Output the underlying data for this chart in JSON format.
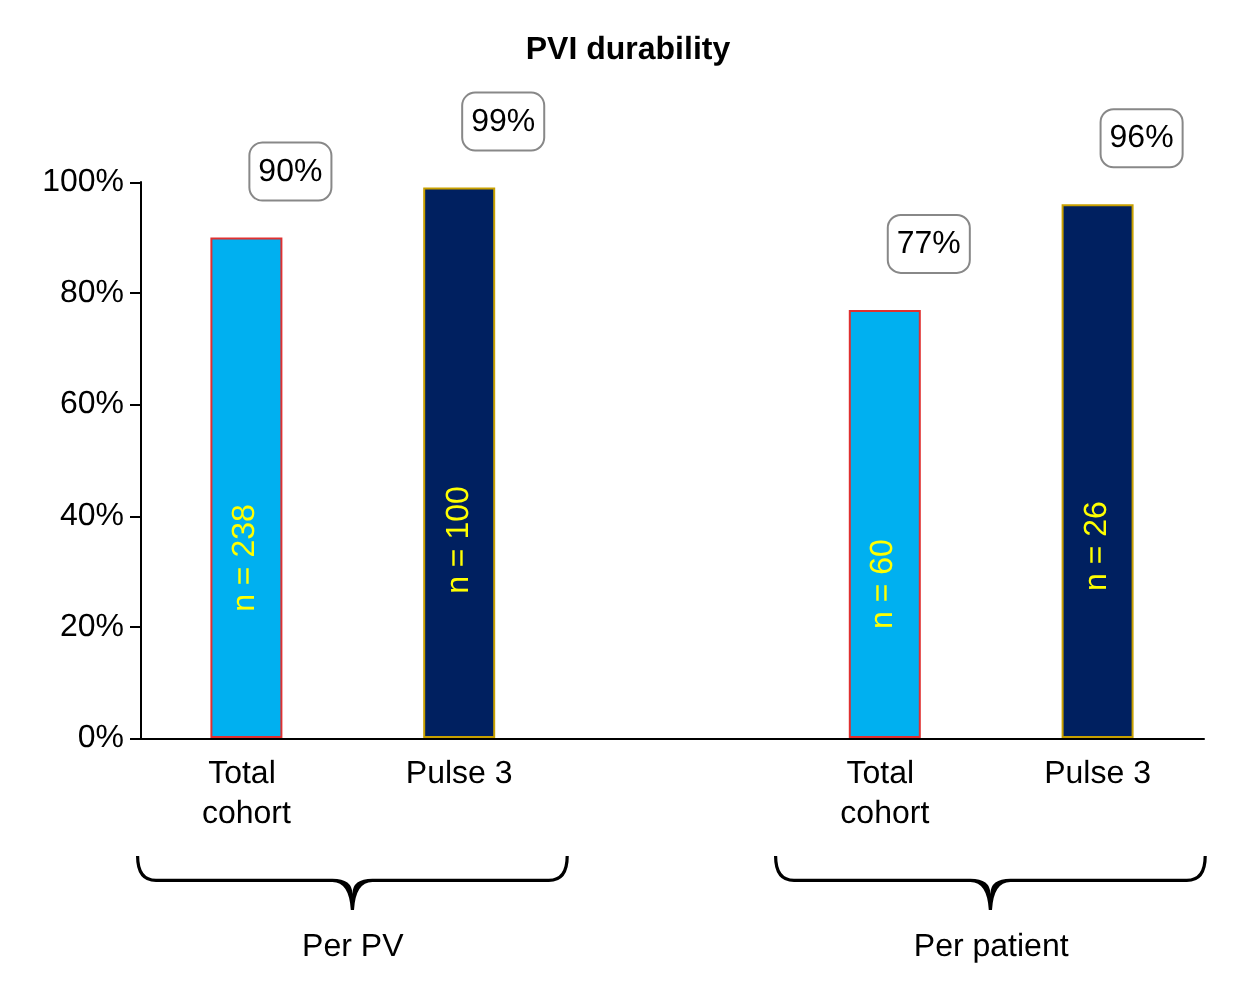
{
  "chart_data": {
    "type": "bar",
    "title": "PVI durability",
    "categories": [
      "Total cohort",
      "Pulse 3",
      null,
      "Total cohort",
      "Pulse 3"
    ],
    "values": [
      90,
      99,
      null,
      77,
      96
    ],
    "colors": [
      "#00b0f0",
      "#002060",
      null,
      "#00b0f0",
      "#002060"
    ],
    "value_labels": [
      "90%",
      "99%",
      null,
      "77%",
      "96%"
    ],
    "ylim": [
      0,
      100
    ],
    "yticks": [
      {
        "value": 0,
        "label": "0%"
      },
      {
        "value": 20,
        "label": "20%"
      },
      {
        "value": 40,
        "label": "40%"
      },
      {
        "value": 60,
        "label": "60%"
      },
      {
        "value": 80,
        "label": "80%"
      },
      {
        "value": 100,
        "label": "100%"
      }
    ],
    "annotations": [
      "n = 238",
      "n = 100",
      "n = 60",
      "n = 26",
      "Per PV",
      "Per patient"
    ],
    "grid": false
  }
}
